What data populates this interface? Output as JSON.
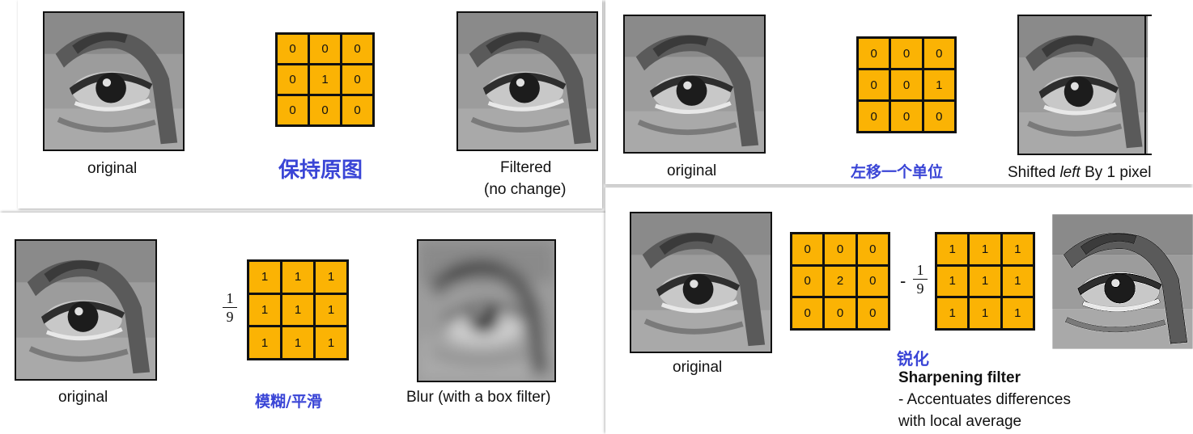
{
  "colors": {
    "kernel_fill": "#fbb304",
    "chinese_label": "#3a45d6"
  },
  "panels": {
    "identity": {
      "original_label": "original",
      "kernel": [
        "0",
        "0",
        "0",
        "0",
        "1",
        "0",
        "0",
        "0",
        "0"
      ],
      "cn_label": "保持原图",
      "result_label_line1": "Filtered",
      "result_label_line2": "(no change)"
    },
    "shift": {
      "original_label": "original",
      "kernel": [
        "0",
        "0",
        "0",
        "0",
        "0",
        "1",
        "0",
        "0",
        "0"
      ],
      "cn_label": "左移一个单位",
      "result_label_pre": "Shifted ",
      "result_label_em": "left",
      "result_label_post": " By 1 pixel"
    },
    "blur": {
      "original_label": "original",
      "frac_num": "1",
      "frac_den": "9",
      "kernel": [
        "1",
        "1",
        "1",
        "1",
        "1",
        "1",
        "1",
        "1",
        "1"
      ],
      "cn_label": "模糊/平滑",
      "result_label": "Blur (with a box filter)"
    },
    "sharpen": {
      "original_label": "original",
      "kernel_a": [
        "0",
        "0",
        "0",
        "0",
        "2",
        "0",
        "0",
        "0",
        "0"
      ],
      "minus": "-",
      "frac_num": "1",
      "frac_den": "9",
      "kernel_b": [
        "1",
        "1",
        "1",
        "1",
        "1",
        "1",
        "1",
        "1",
        "1"
      ],
      "cn_label": "锐化",
      "title": "Sharpening filter",
      "desc_line1": "- Accentuates differences",
      "desc_line2": "with local average"
    }
  }
}
